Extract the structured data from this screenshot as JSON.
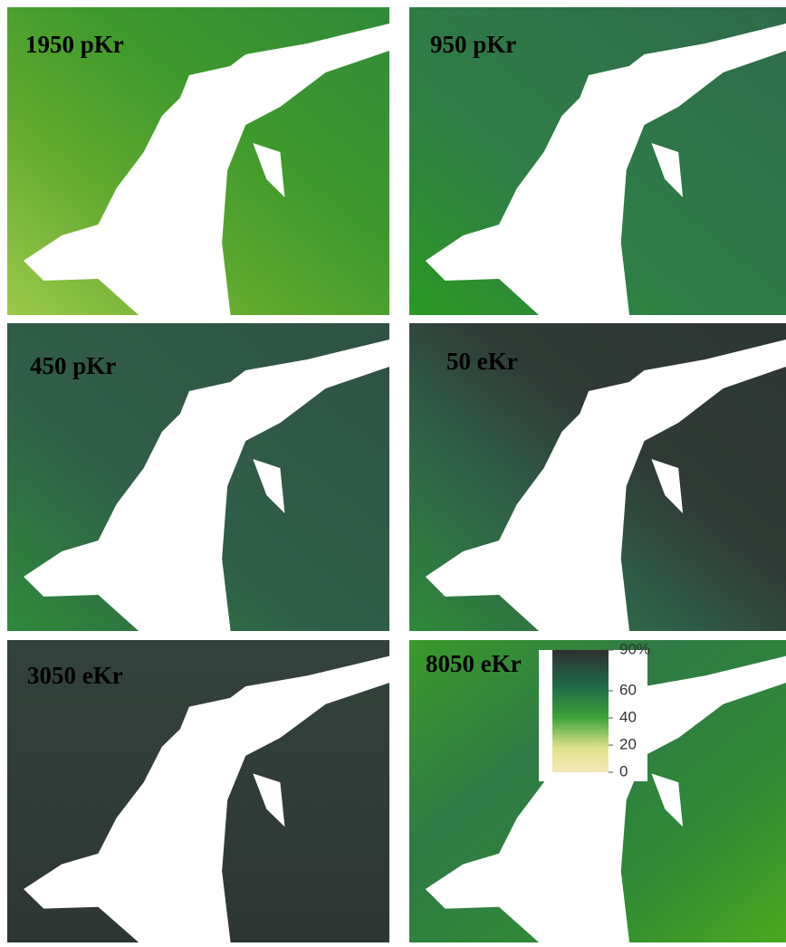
{
  "panels": [
    {
      "label": "1950 pKr"
    },
    {
      "label": "950 pKr"
    },
    {
      "label": "450 pKr"
    },
    {
      "label": "50 eKr"
    },
    {
      "label": "3050 eKr"
    },
    {
      "label": "8050 eKr"
    }
  ],
  "legend": {
    "lim": [
      0,
      90
    ],
    "ticks": [
      {
        "value": 90,
        "label": "90%"
      },
      60,
      40,
      20,
      0
    ]
  }
}
